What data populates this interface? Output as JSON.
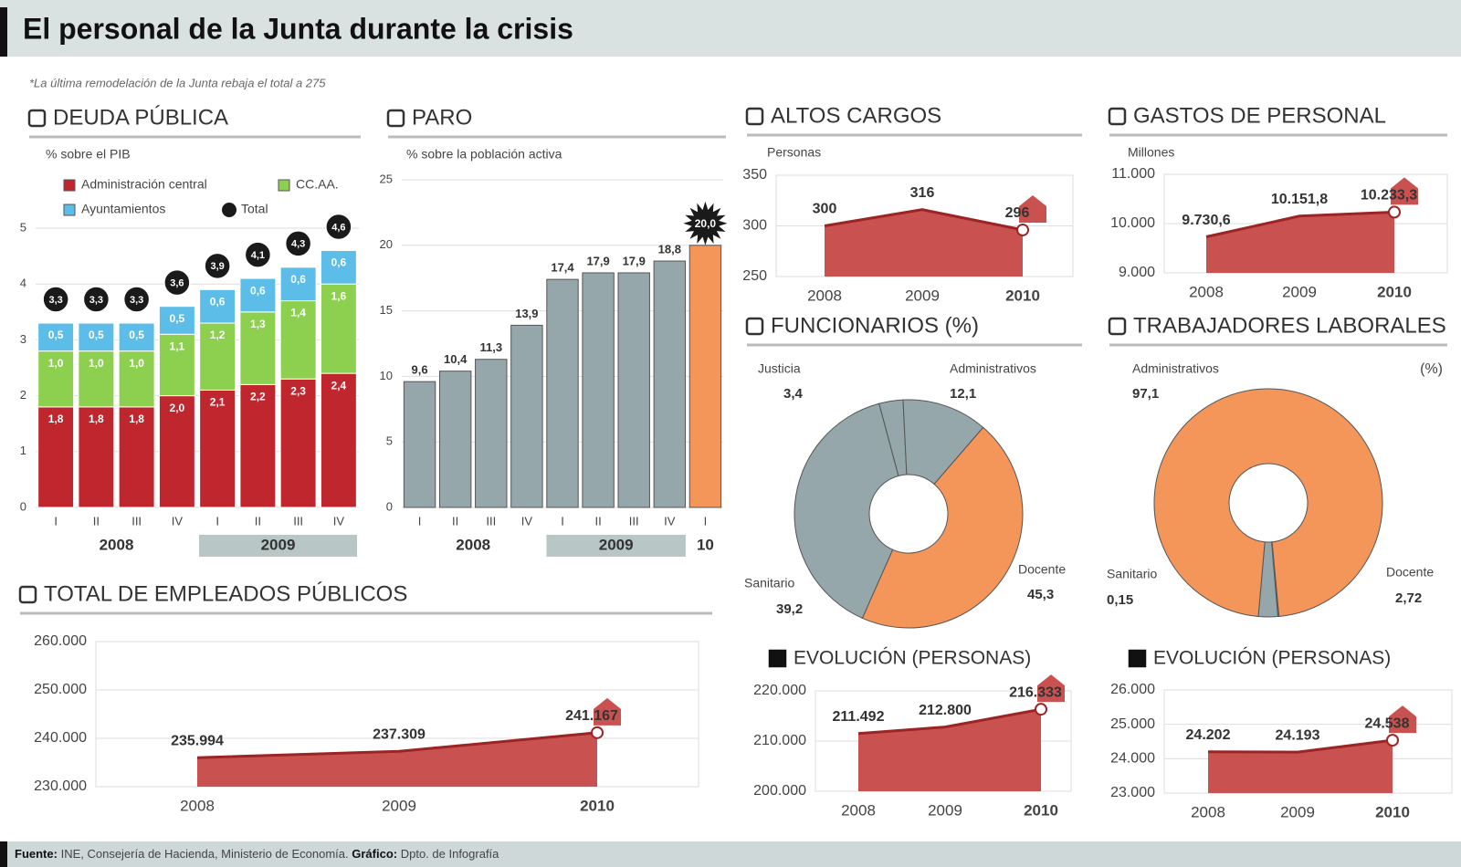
{
  "title": "El personal de la Junta durante la crisis",
  "note": "*La última remodelación de la Junta rebaja el total a 275",
  "source": {
    "label": "Fuente:",
    "text": "INE, Consejería de Hacienda, Ministerio de Economía."
  },
  "credit": {
    "label": "Gráfico:",
    "text": "Dpto. de Infografía"
  },
  "chart_data": [
    {
      "type": "bar",
      "stacked": true,
      "title": "DEUDA PÚBLICA",
      "subtitle": "% sobre el PIB",
      "groups": [
        {
          "label": "2008",
          "categories": [
            "I",
            "II",
            "III",
            "IV"
          ]
        },
        {
          "label": "2009",
          "categories": [
            "I",
            "II",
            "III",
            "IV"
          ]
        }
      ],
      "series": [
        {
          "name": "Administración central",
          "color": "#c0262d",
          "values": [
            1.8,
            1.8,
            1.8,
            2.0,
            2.1,
            2.2,
            2.3,
            2.4
          ],
          "value_labels": [
            "1,8",
            "1,8",
            "1,8",
            "2,0",
            "2,1",
            "2,2",
            "2,3",
            "2,4"
          ]
        },
        {
          "name": "CC.AA.",
          "color": "#8dcf4f",
          "values": [
            1.0,
            1.0,
            1.0,
            1.1,
            1.2,
            1.3,
            1.4,
            1.6
          ],
          "value_labels": [
            "1,0",
            "1,0",
            "1,0",
            "1,1",
            "1,2",
            "1,3",
            "1,4",
            "1,6"
          ]
        },
        {
          "name": "Ayuntamientos",
          "color": "#5bbde8",
          "values": [
            0.5,
            0.5,
            0.5,
            0.5,
            0.6,
            0.6,
            0.6,
            0.6
          ],
          "value_labels": [
            "0,5",
            "0,5",
            "0,5",
            "0,5",
            "0,6",
            "0,6",
            "0,6",
            "0,6"
          ]
        },
        {
          "name": "Total",
          "type": "dot",
          "color": "#1a1a1a",
          "values": [
            3.3,
            3.3,
            3.3,
            3.6,
            3.9,
            4.1,
            4.3,
            4.6
          ],
          "value_labels": [
            "3,3",
            "3,3",
            "3,3",
            "3,6",
            "3,9",
            "4,1",
            "4,3",
            "4,6"
          ]
        }
      ],
      "ylim": [
        0,
        5
      ],
      "yticks": [
        0,
        1,
        2,
        3,
        4,
        5
      ],
      "grid": true
    },
    {
      "type": "bar",
      "title": "PARO",
      "subtitle": "% sobre la población activa",
      "groups": [
        {
          "label": "2008",
          "categories": [
            "I",
            "II",
            "III",
            "IV"
          ]
        },
        {
          "label": "2009",
          "categories": [
            "I",
            "II",
            "III",
            "IV"
          ]
        },
        {
          "label": "10",
          "categories": [
            "I"
          ]
        }
      ],
      "values": [
        9.6,
        10.4,
        11.3,
        13.9,
        17.4,
        17.9,
        17.9,
        18.8,
        20.0
      ],
      "value_labels": [
        "9,6",
        "10,4",
        "11,3",
        "13,9",
        "17,4",
        "17,9",
        "17,9",
        "18,8",
        "20,0"
      ],
      "colors": [
        "#95a7ab",
        "#95a7ab",
        "#95a7ab",
        "#95a7ab",
        "#95a7ab",
        "#95a7ab",
        "#95a7ab",
        "#95a7ab",
        "#f4955a"
      ],
      "ylim": [
        0,
        25
      ],
      "yticks": [
        0,
        5,
        10,
        15,
        20,
        25
      ],
      "grid": true
    },
    {
      "type": "area",
      "title": "ALTOS CARGOS",
      "subtitle": "Personas",
      "categories": [
        "2008",
        "2009",
        "2010"
      ],
      "values": [
        300,
        316,
        296
      ],
      "color": "#c9514f",
      "ylim": [
        250,
        350
      ],
      "yticks": [
        250,
        300,
        350
      ],
      "grid": true
    },
    {
      "type": "area",
      "title": "GASTOS DE PERSONAL",
      "subtitle": "Millones",
      "categories": [
        "2008",
        "2009",
        "2010"
      ],
      "values": [
        9730.6,
        10151.8,
        10233.3
      ],
      "value_labels": [
        "9.730,6",
        "10.151,8",
        "10.233,3"
      ],
      "color": "#c9514f",
      "ylim": [
        9000,
        11000
      ],
      "yticks": [
        {
          "value": 9000,
          "label": "9.000"
        },
        {
          "value": 10000,
          "label": "10.000"
        },
        {
          "value": 11000,
          "label": "11.000"
        }
      ],
      "grid": true
    },
    {
      "type": "pie",
      "donut": true,
      "title": "FUNCIONARIOS (%)",
      "categories": [
        "Justicia",
        "Administrativos",
        "Docente",
        "Sanitario"
      ],
      "values": [
        3.4,
        12.1,
        45.3,
        39.2
      ],
      "value_labels": [
        "3,4",
        "12,1",
        "45,3",
        "39,2"
      ],
      "colors": [
        "#95a7ab",
        "#95a7ab",
        "#f4955a",
        "#95a7ab"
      ]
    },
    {
      "type": "pie",
      "donut": true,
      "title": "TRABAJADORES LABORALES",
      "unit": "(%)",
      "categories": [
        "Administrativos",
        "Sanitario",
        "Docente"
      ],
      "values": [
        97.1,
        0.15,
        2.72
      ],
      "value_labels": [
        "97,1",
        "0,15",
        "2,72"
      ],
      "colors": [
        "#f4955a",
        "#95a7ab",
        "#95a7ab"
      ]
    },
    {
      "type": "area",
      "title": "TOTAL DE EMPLEADOS PÚBLICOS",
      "categories": [
        "2008",
        "2009",
        "2010"
      ],
      "values": [
        235994,
        237309,
        241167
      ],
      "value_labels": [
        "235.994",
        "237.309",
        "241.167"
      ],
      "color": "#c9514f",
      "ylim": [
        230000,
        260000
      ],
      "yticks": [
        {
          "value": 230000,
          "label": "230.000"
        },
        {
          "value": 240000,
          "label": "240.000"
        },
        {
          "value": 250000,
          "label": "250.000"
        },
        {
          "value": 260000,
          "label": "260.000"
        }
      ],
      "grid": true
    },
    {
      "type": "area",
      "title": "EVOLUCIÓN (PERSONAS)",
      "categories": [
        "2008",
        "2009",
        "2010"
      ],
      "values": [
        211492,
        212800,
        216333
      ],
      "value_labels": [
        "211.492",
        "212.800",
        "216.333"
      ],
      "color": "#c9514f",
      "ylim": [
        200000,
        220000
      ],
      "yticks": [
        {
          "value": 200000,
          "label": "200.000"
        },
        {
          "value": 210000,
          "label": "210.000"
        },
        {
          "value": 220000,
          "label": "220.000"
        }
      ],
      "grid": true
    },
    {
      "type": "area",
      "title": "EVOLUCIÓN (PERSONAS)",
      "categories": [
        "2008",
        "2009",
        "2010"
      ],
      "values": [
        24202,
        24193,
        24538
      ],
      "value_labels": [
        "24.202",
        "24.193",
        "24.538"
      ],
      "color": "#c9514f",
      "ylim": [
        23000,
        26000
      ],
      "yticks": [
        {
          "value": 23000,
          "label": "23.000"
        },
        {
          "value": 24000,
          "label": "24.000"
        },
        {
          "value": 25000,
          "label": "25.000"
        },
        {
          "value": 26000,
          "label": "26.000"
        }
      ],
      "grid": true
    }
  ]
}
